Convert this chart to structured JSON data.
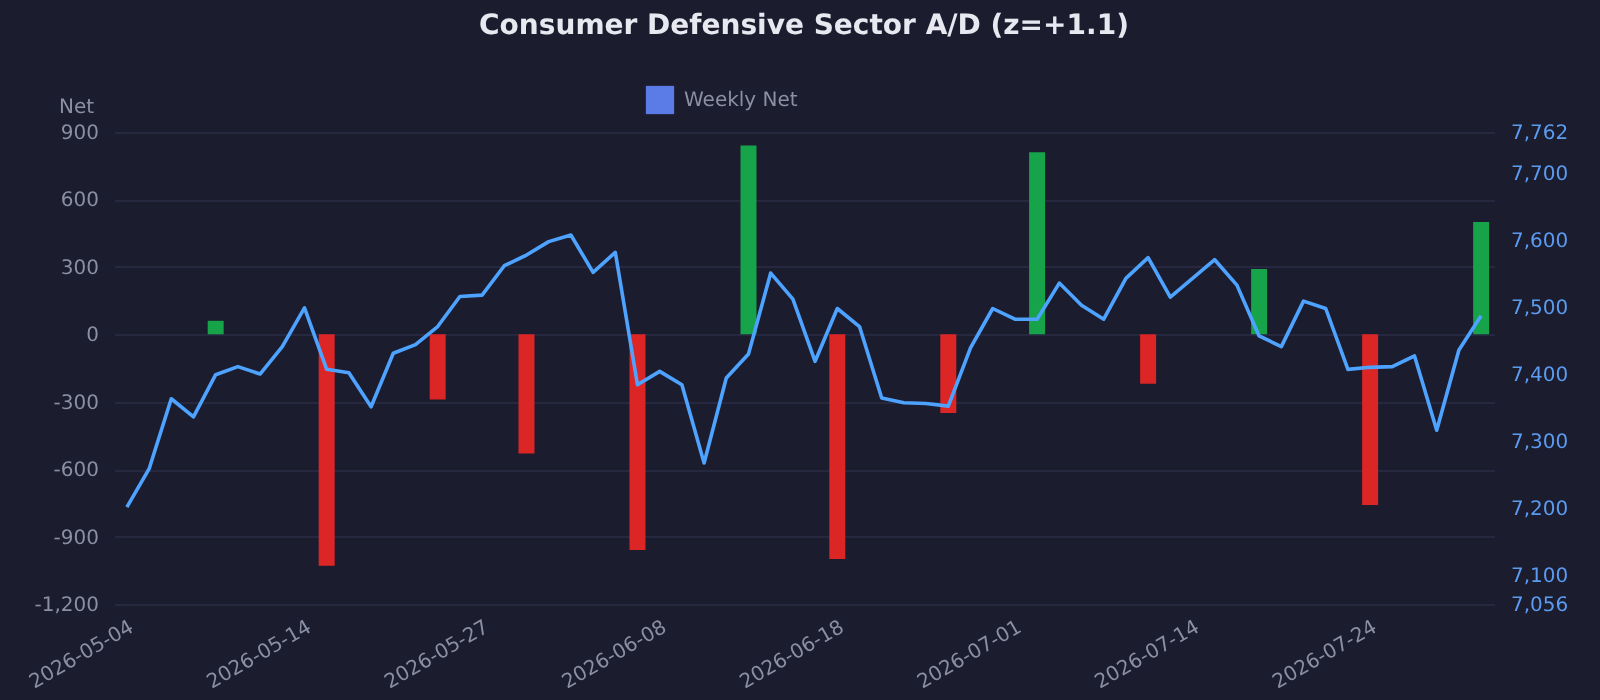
{
  "chart_data": {
    "type": "bar",
    "title": "Consumer Defensive Sector A/D (z=+1.1)",
    "ylabel": "Net",
    "categories": [
      "2026-05-04",
      null,
      null,
      null,
      null,
      null,
      null,
      null,
      "2026-05-14",
      null,
      null,
      null,
      null,
      null,
      null,
      null,
      "2026-05-27",
      null,
      null,
      null,
      null,
      null,
      null,
      null,
      "2026-06-08",
      null,
      null,
      null,
      null,
      null,
      null,
      null,
      "2026-06-18",
      null,
      null,
      null,
      null,
      null,
      null,
      null,
      "2026-07-01",
      null,
      null,
      null,
      null,
      null,
      null,
      null,
      "2026-07-14",
      null,
      null,
      null,
      null,
      null,
      null,
      null,
      "2026-07-24",
      null,
      null,
      null,
      null,
      null
    ],
    "series": [
      {
        "name": "Weekly Net",
        "color": "#5b7ce6",
        "values": [
          null,
          null,
          null,
          null,
          60,
          null,
          null,
          null,
          null,
          -1030,
          null,
          null,
          null,
          null,
          -290,
          null,
          null,
          null,
          -530,
          null,
          null,
          null,
          null,
          -960,
          null,
          null,
          null,
          null,
          840,
          null,
          null,
          null,
          -1000,
          null,
          null,
          null,
          null,
          -350,
          null,
          null,
          null,
          810,
          null,
          null,
          null,
          null,
          -220,
          null,
          null,
          null,
          null,
          290,
          null,
          null,
          null,
          null,
          -760,
          null,
          null,
          null,
          null,
          500
        ],
        "colors": [
          null,
          null,
          null,
          null,
          "#16a34a",
          null,
          null,
          null,
          null,
          "#dc2626",
          null,
          null,
          null,
          null,
          "#dc2626",
          null,
          null,
          null,
          "#dc2626",
          null,
          null,
          null,
          null,
          "#dc2626",
          null,
          null,
          null,
          null,
          "#16a34a",
          null,
          null,
          null,
          "#dc2626",
          null,
          null,
          null,
          null,
          "#dc2626",
          null,
          null,
          null,
          "#16a34a",
          null,
          null,
          null,
          null,
          "#dc2626",
          null,
          null,
          null,
          null,
          "#16a34a",
          null,
          null,
          null,
          null,
          "#dc2626",
          null,
          null,
          null,
          null,
          "#16a34a"
        ]
      },
      {
        "type": "line",
        "axis": "y2",
        "color": "#4da3ff",
        "values": [
          7201,
          7258,
          7363,
          7336,
          7399,
          7411,
          7400,
          7441,
          7499,
          7407,
          7402,
          7351,
          7431,
          7444,
          7471,
          7516,
          7518,
          7562,
          7578,
          7598,
          7608,
          7552,
          7582,
          7384,
          7404,
          7384,
          7267,
          7394,
          7430,
          7551,
          7512,
          7419,
          7498,
          7471,
          7364,
          7357,
          7356,
          7352,
          7439,
          7498,
          7482,
          7482,
          7536,
          7503,
          7482,
          7543,
          7574,
          7515,
          7543,
          7571,
          7533,
          7457,
          7441,
          7509,
          7498,
          7407,
          7410,
          7411,
          7427,
          7316,
          7436,
          7487
        ]
      }
    ],
    "ylim": [
      -1200,
      900
    ],
    "yticks": [
      {
        "value": -1200,
        "label": "-1,200"
      },
      -900,
      -600,
      -300,
      0,
      300,
      600,
      900
    ],
    "y2lim": [
      7056,
      7762
    ],
    "y2ticks": [
      {
        "value": 7056,
        "label": "7,056"
      },
      {
        "value": 7100,
        "label": "7,100"
      },
      {
        "value": 7200,
        "label": "7,200"
      },
      {
        "value": 7300,
        "label": "7,300"
      },
      {
        "value": 7400,
        "label": "7,400"
      },
      {
        "value": 7500,
        "label": "7,500"
      },
      {
        "value": 7600,
        "label": "7,600"
      },
      {
        "value": 7700,
        "label": "7,700"
      },
      {
        "value": 7762,
        "label": "7,762"
      }
    ],
    "grid": "y",
    "legend": "top"
  }
}
